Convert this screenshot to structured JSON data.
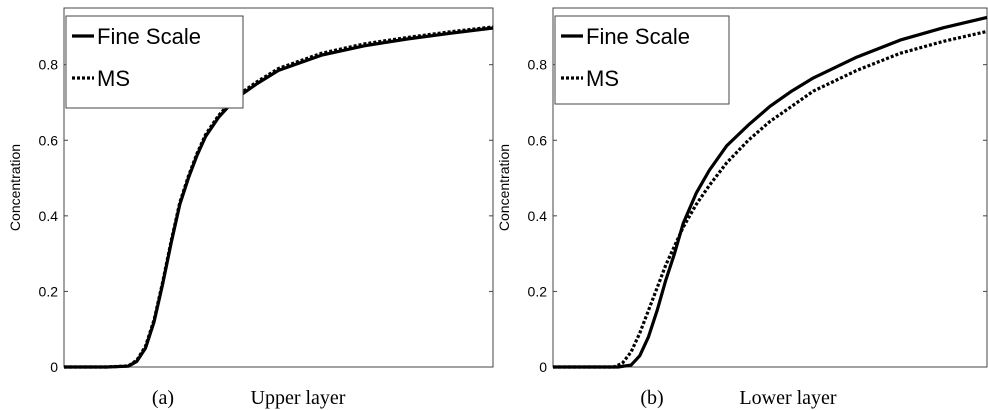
{
  "chart_data": [
    {
      "type": "line",
      "panel_label": "(a)",
      "caption": "Upper layer",
      "ylabel": "Concentration",
      "xlabel": "",
      "ylim": [
        0,
        0.95
      ],
      "xlim": [
        0,
        1
      ],
      "yticks": [
        0,
        0.2,
        0.4,
        0.6,
        0.8
      ],
      "ytick_labels": [
        "0",
        "0.2",
        "0.4",
        "0.6",
        "0.8"
      ],
      "grid": false,
      "legend_position": "top-left",
      "series": [
        {
          "name": "Fine Scale",
          "style": "solid",
          "x": [
            0,
            0.1,
            0.15,
            0.17,
            0.19,
            0.21,
            0.23,
            0.25,
            0.27,
            0.29,
            0.31,
            0.33,
            0.36,
            0.4,
            0.45,
            0.5,
            0.6,
            0.7,
            0.8,
            0.9,
            1.0
          ],
          "y": [
            0,
            0,
            0.002,
            0.015,
            0.05,
            0.12,
            0.22,
            0.33,
            0.43,
            0.5,
            0.56,
            0.61,
            0.66,
            0.71,
            0.75,
            0.785,
            0.825,
            0.85,
            0.868,
            0.883,
            0.897
          ]
        },
        {
          "name": "MS",
          "style": "dashed",
          "x": [
            0,
            0.1,
            0.15,
            0.17,
            0.19,
            0.21,
            0.23,
            0.25,
            0.27,
            0.29,
            0.31,
            0.33,
            0.36,
            0.4,
            0.45,
            0.5,
            0.6,
            0.7,
            0.8,
            0.9,
            1.0
          ],
          "y": [
            0,
            0,
            0.003,
            0.018,
            0.055,
            0.125,
            0.225,
            0.335,
            0.435,
            0.505,
            0.565,
            0.615,
            0.665,
            0.715,
            0.755,
            0.79,
            0.83,
            0.855,
            0.872,
            0.887,
            0.9
          ]
        }
      ]
    },
    {
      "type": "line",
      "panel_label": "(b)",
      "caption": "Lower layer",
      "ylabel": "Concentration",
      "xlabel": "",
      "ylim": [
        0,
        0.95
      ],
      "xlim": [
        0,
        1
      ],
      "yticks": [
        0,
        0.2,
        0.4,
        0.6,
        0.8
      ],
      "ytick_labels": [
        "0",
        "0.2",
        "0.4",
        "0.6",
        "0.8"
      ],
      "grid": false,
      "legend_position": "top-left",
      "series": [
        {
          "name": "Fine Scale",
          "style": "solid",
          "x": [
            0,
            0.15,
            0.18,
            0.2,
            0.22,
            0.24,
            0.26,
            0.28,
            0.3,
            0.33,
            0.36,
            0.4,
            0.45,
            0.5,
            0.55,
            0.6,
            0.7,
            0.8,
            0.9,
            1.0
          ],
          "y": [
            0,
            0,
            0.005,
            0.03,
            0.08,
            0.15,
            0.23,
            0.3,
            0.38,
            0.46,
            0.52,
            0.585,
            0.64,
            0.69,
            0.73,
            0.765,
            0.82,
            0.865,
            0.898,
            0.925
          ]
        },
        {
          "name": "MS",
          "style": "dashed",
          "x": [
            0,
            0.14,
            0.16,
            0.18,
            0.2,
            0.22,
            0.24,
            0.26,
            0.28,
            0.3,
            0.33,
            0.36,
            0.4,
            0.45,
            0.5,
            0.55,
            0.6,
            0.7,
            0.8,
            0.9,
            1.0
          ],
          "y": [
            0,
            0,
            0.01,
            0.04,
            0.09,
            0.15,
            0.21,
            0.27,
            0.32,
            0.37,
            0.43,
            0.48,
            0.54,
            0.6,
            0.65,
            0.69,
            0.73,
            0.785,
            0.83,
            0.862,
            0.888
          ]
        }
      ]
    }
  ]
}
